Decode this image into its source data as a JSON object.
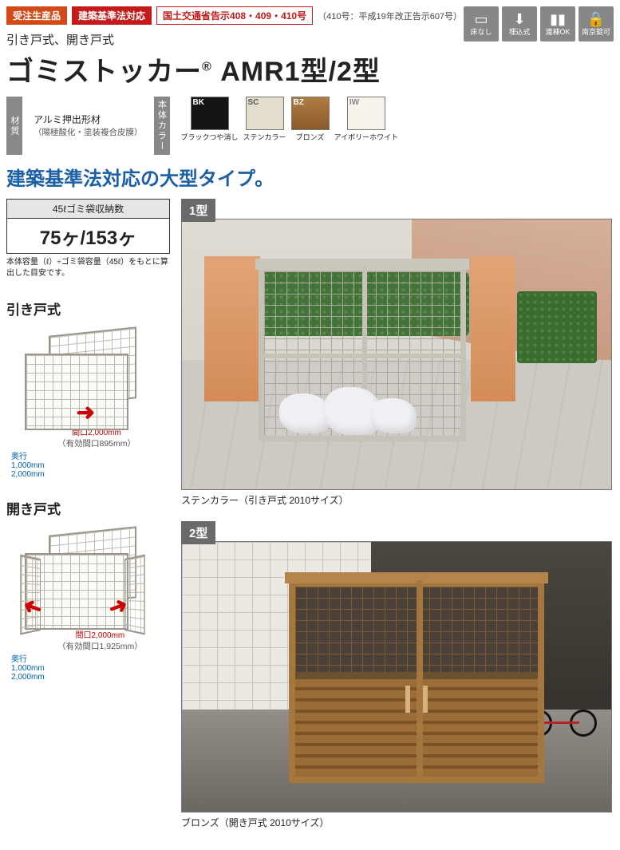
{
  "badges": {
    "order": "受注生産品",
    "order_bg": "#d24a17",
    "law": "建築基準法対応",
    "law_bg": "#c41a1a",
    "notice": "国土交通省告示408・409・410号",
    "notice_color": "#c41a1a",
    "notice_note": "（410号：平成19年改正告示607号）"
  },
  "subtitle": "引き戸式、開き戸式",
  "title_a": "ゴミストッカー",
  "title_reg": "®",
  "title_b": " AMR1型/2型",
  "features": [
    {
      "glyph": "▭",
      "label": "床なし"
    },
    {
      "glyph": "⬇",
      "label": "埋込式"
    },
    {
      "glyph": "▮▮",
      "label": "連棟OK"
    },
    {
      "glyph": "🔒",
      "label": "南京錠可"
    }
  ],
  "material_label": "材質",
  "material_line1": "アルミ押出形材",
  "material_line2": "（陽極酸化・塗装複合皮膜）",
  "color_label": "本体カラー",
  "swatches": [
    {
      "code": "BK",
      "name": "ブラックつや消し",
      "bg": "#141414",
      "code_color": "#fff"
    },
    {
      "code": "SC",
      "name": "ステンカラー",
      "bg": "#e3ddcd",
      "code_color": "#555"
    },
    {
      "code": "BZ",
      "name": "ブロンズ",
      "bg": "linear-gradient(#b07c44,#8a5a2a)",
      "code_color": "#fff"
    },
    {
      "code": "IW",
      "name": "アイボリーホワイト",
      "bg": "#f7f3ea",
      "code_color": "#888"
    }
  ],
  "tagline": "建築基準法対応の大型タイプ。",
  "capacity": {
    "header": "45ℓゴミ袋収納数",
    "value": "75ヶ/153ヶ",
    "note": "本体容量（ℓ）÷ゴミ袋容量（45ℓ）をもとに算出した目安です。"
  },
  "style1": {
    "title": "引き戸式",
    "width_label": "間口2,000mm",
    "width_note": "（有効間口895mm）",
    "depth_label": "奥行",
    "depth_v1": "1,000mm",
    "depth_v2": "2,000mm"
  },
  "style2": {
    "title": "開き戸式",
    "width_label": "間口2,000mm",
    "width_note": "（有効間口1,925mm）",
    "depth_label": "奥行",
    "depth_v1": "1,000mm",
    "depth_v2": "2,000mm"
  },
  "photo1": {
    "tag": "1型",
    "caption": "ステンカラー（引き戸式 2010サイズ）"
  },
  "photo2": {
    "tag": "2型",
    "caption": "ブロンズ（開き戸式 2010サイズ）"
  }
}
